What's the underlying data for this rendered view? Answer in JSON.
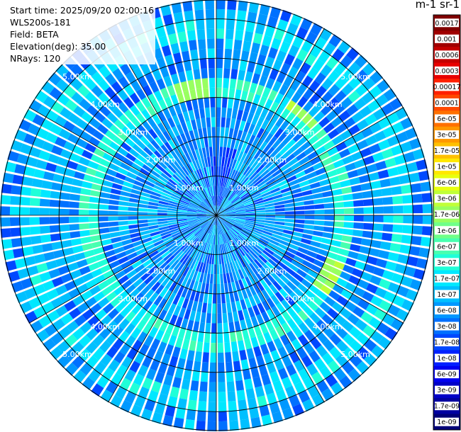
{
  "header": {
    "start_time": "Start time: 2025/09/20 02:00:16",
    "instrument": "WLS200s-181",
    "field": "Field: BETA",
    "elevation": "Elevation(deg): 35.00",
    "nrays": "NRays: 120"
  },
  "colorbar": {
    "title": "m-1 sr-1",
    "ticks": [
      "0.0017",
      "0.001",
      "0.0006",
      "0.0003",
      "0.00017",
      "0.0001",
      "6e-05",
      "3e-05",
      "1.7e-05",
      "1e-05",
      "6e-06",
      "3e-06",
      "1.7e-06",
      "1e-06",
      "6e-07",
      "3e-07",
      "1.7e-07",
      "1e-07",
      "6e-08",
      "3e-08",
      "1.7e-08",
      "1e-08",
      "6e-09",
      "3e-09",
      "1.7e-09",
      "1e-09"
    ],
    "colors": [
      "#800000",
      "#a00000",
      "#c40000",
      "#e80000",
      "#ff2000",
      "#ff4800",
      "#ff7000",
      "#ff9800",
      "#ffc000",
      "#ffe800",
      "#e8ff10",
      "#c0ff38",
      "#98ff60",
      "#70ff88",
      "#48ffb0",
      "#20ffd8",
      "#00e8ff",
      "#00c0ff",
      "#0098ff",
      "#0070ff",
      "#0048ff",
      "#0020ff",
      "#0000f0",
      "#0000c8",
      "#0000a0",
      "#000078"
    ]
  },
  "chart_data": {
    "type": "heatmap",
    "projection": "polar-ppi",
    "nrays": 120,
    "elevation_deg": 35.0,
    "field": "BETA",
    "units": "m-1 sr-1",
    "range_rings_km": [
      1,
      2,
      3,
      4,
      5
    ],
    "ring_labels": [
      "1.00km",
      "2.00km",
      "3.00km",
      "4.00km",
      "5.00km"
    ],
    "max_range_km": 5.5,
    "color_scale": "log",
    "value_range": [
      1e-09,
      0.0017
    ],
    "features": [
      {
        "name": "background",
        "range_km": [
          0,
          5.5
        ],
        "beta_approx": 6e-08
      },
      {
        "name": "aerosol ring",
        "range_km": [
          3.0,
          3.6
        ],
        "beta_approx": 3e-07
      },
      {
        "name": "outer ring",
        "range_km": [
          4.5,
          5.0
        ],
        "beta_approx": 1.7e-07
      },
      {
        "name": "hotspot north",
        "azimuth_deg": 350,
        "range_km": 3.3,
        "beta_approx": 1.7e-06
      },
      {
        "name": "hotspot northeast",
        "azimuth_deg": 40,
        "range_km": 3.4,
        "beta_approx": 1.7e-06
      },
      {
        "name": "hotspot southeast",
        "azimuth_deg": 118,
        "range_km": 3.3,
        "beta_approx": 1.7e-06
      },
      {
        "name": "low-signal sector",
        "azimuth_deg": 5,
        "range_km": [
          0.2,
          1.8
        ],
        "beta_approx": 1e-08
      }
    ]
  }
}
